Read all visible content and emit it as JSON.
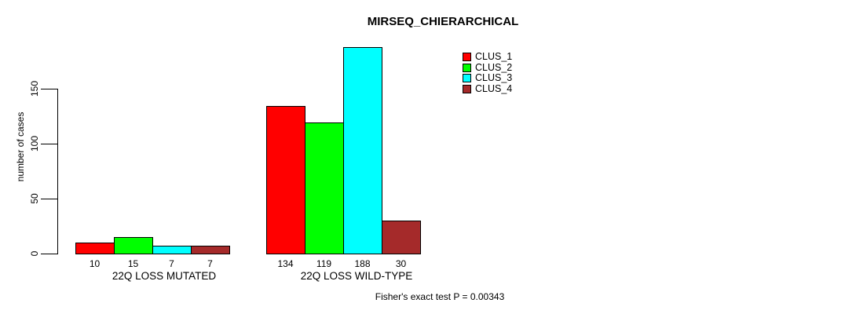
{
  "chart_data": {
    "type": "bar",
    "title": "MIRSEQ_CHIERARCHICAL",
    "ylabel": "number of cases",
    "xlabel": "",
    "categories": [
      "22Q LOSS MUTATED",
      "22Q LOSS WILD-TYPE"
    ],
    "series": [
      {
        "name": "CLUS_1",
        "color": "#FF0000",
        "values": [
          10,
          134
        ]
      },
      {
        "name": "CLUS_2",
        "color": "#00FF00",
        "values": [
          15,
          119
        ]
      },
      {
        "name": "CLUS_3",
        "color": "#00FFFF",
        "values": [
          7,
          188
        ]
      },
      {
        "name": "CLUS_4",
        "color": "#A52A2A",
        "values": [
          7,
          30
        ]
      }
    ],
    "yticks": [
      0,
      50,
      100,
      150
    ],
    "ylim": [
      0,
      150
    ],
    "grid": false,
    "legend_position": "top-right",
    "bar_value_labels_shown": true,
    "annotation": "Fisher's exact test P = 0.00343",
    "colors": {
      "background": "#FFFFFF",
      "axis": "#000000",
      "text": "#000000"
    }
  }
}
